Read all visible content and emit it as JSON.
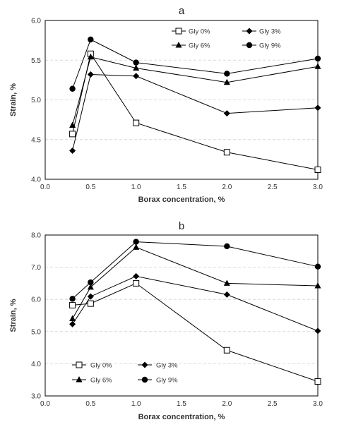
{
  "chart_data": [
    {
      "type": "line",
      "title": "a",
      "xlabel": "Borax concentration, %",
      "ylabel": "Strain, %",
      "xlim": [
        0.0,
        3.0
      ],
      "ylim": [
        4.0,
        6.0
      ],
      "x_ticks": [
        "0.0",
        "0.5",
        "1.0",
        "1.5",
        "2.0",
        "2.5",
        "3.0"
      ],
      "y_ticks": [
        "4.0",
        "4.5",
        "5.0",
        "5.5",
        "6.0"
      ],
      "grid": true,
      "legend_position": "top-right",
      "x": [
        0.3,
        0.5,
        1.0,
        2.0,
        3.0
      ],
      "series": [
        {
          "name": "Gly 0%",
          "marker": "open-square",
          "values": [
            4.57,
            5.58,
            4.71,
            4.34,
            4.12
          ]
        },
        {
          "name": "Gly 3%",
          "marker": "diamond",
          "values": [
            4.36,
            5.32,
            5.3,
            4.83,
            4.9
          ]
        },
        {
          "name": "Gly 6%",
          "marker": "triangle",
          "values": [
            4.68,
            5.54,
            5.4,
            5.22,
            5.42
          ]
        },
        {
          "name": "Gly 9%",
          "marker": "circle",
          "values": [
            5.14,
            5.76,
            5.47,
            5.33,
            5.52
          ]
        }
      ]
    },
    {
      "type": "line",
      "title": "b",
      "xlabel": "Borax concentration, %",
      "ylabel": "Strain, %",
      "xlim": [
        0.0,
        3.0
      ],
      "ylim": [
        3.0,
        8.0
      ],
      "x_ticks": [
        "0.0",
        "0.5",
        "1.0",
        "1.5",
        "2.0",
        "2.5",
        "3.0"
      ],
      "y_ticks": [
        "3.0",
        "4.0",
        "5.0",
        "6.0",
        "7.0",
        "8.0"
      ],
      "grid": true,
      "legend_position": "bottom-left",
      "x": [
        0.3,
        0.5,
        1.0,
        2.0,
        3.0
      ],
      "series": [
        {
          "name": "Gly 0%",
          "marker": "open-square",
          "values": [
            5.82,
            5.87,
            6.5,
            4.42,
            3.45
          ]
        },
        {
          "name": "Gly 3%",
          "marker": "diamond",
          "values": [
            5.23,
            6.09,
            6.72,
            6.15,
            5.02
          ]
        },
        {
          "name": "Gly 6%",
          "marker": "triangle",
          "values": [
            5.4,
            6.38,
            7.62,
            6.5,
            6.42
          ]
        },
        {
          "name": "Gly 9%",
          "marker": "circle",
          "values": [
            6.02,
            6.53,
            7.79,
            7.65,
            7.02
          ]
        }
      ]
    }
  ],
  "colors": {
    "series": "#000000",
    "axis": "#000000",
    "grid": "#d9d9d9",
    "text": "#333333"
  }
}
